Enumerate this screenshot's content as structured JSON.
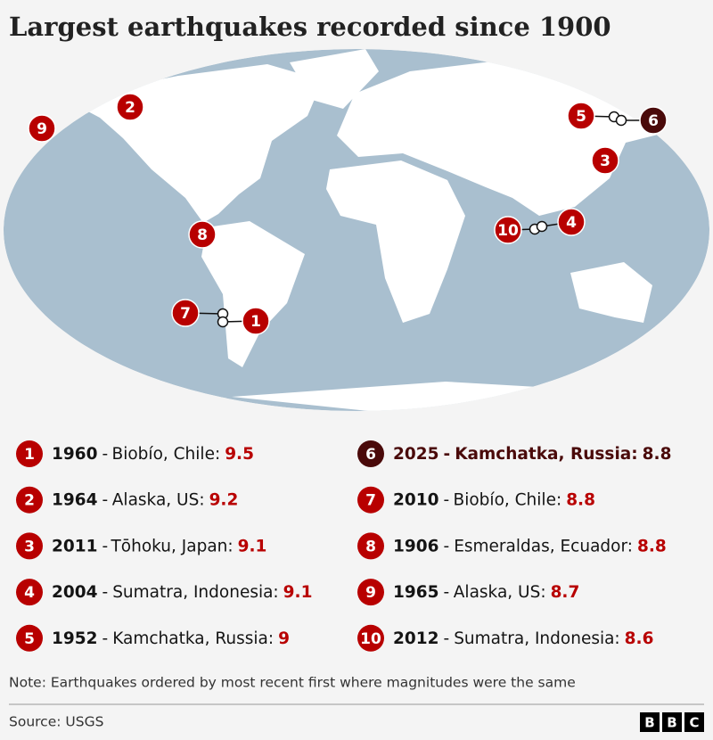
{
  "title": "Largest earthquakes recorded since 1900",
  "separator": "-",
  "earthquakes": [
    {
      "rank": 1,
      "year": 1960,
      "location": "Biobío, Chile:",
      "magnitude": 9.5
    },
    {
      "rank": 2,
      "year": 1964,
      "location": "Alaska, US:",
      "magnitude": 9.2
    },
    {
      "rank": 3,
      "year": 2011,
      "location": "Tōhoku, Japan:",
      "magnitude": 9.1
    },
    {
      "rank": 4,
      "year": 2004,
      "location": "Sumatra, Indonesia:",
      "magnitude": 9.1
    },
    {
      "rank": 5,
      "year": 1952,
      "location": "Kamchatka, Russia:",
      "magnitude": 9
    },
    {
      "rank": 6,
      "year": 2025,
      "location": "Kamchatka, Russia:",
      "magnitude": 8.8
    },
    {
      "rank": 7,
      "year": 2010,
      "location": "Biobío, Chile:",
      "magnitude": 8.8
    },
    {
      "rank": 8,
      "year": 1906,
      "location": "Esmeraldas, Ecuador:",
      "magnitude": 8.8
    },
    {
      "rank": 9,
      "year": 1965,
      "location": "Alaska, US:",
      "magnitude": 8.7
    },
    {
      "rank": 10,
      "year": 2012,
      "location": "Sumatra, Indonesia:",
      "magnitude": 8.6
    }
  ],
  "note": "Note: Earthquakes ordered by most recent first where magnitudes were the same",
  "source": "Source: USGS",
  "logo": [
    "B",
    "B",
    "C"
  ]
}
